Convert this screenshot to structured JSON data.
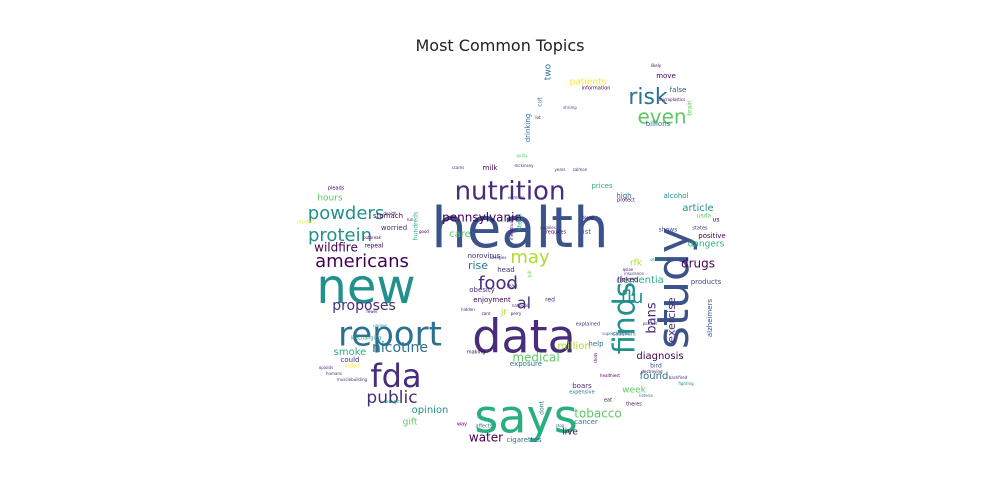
{
  "chart_data": {
    "type": "wordcloud",
    "title": "Most Common Topics",
    "palette": [
      "#440154",
      "#472d7b",
      "#3b528b",
      "#2c728e",
      "#21918c",
      "#28ae80",
      "#5ec962",
      "#addc30",
      "#fde725"
    ],
    "words": [
      {
        "text": "health",
        "weight": 100,
        "color": "#3b528b"
      },
      {
        "text": "says",
        "weight": 86,
        "color": "#28ae80"
      },
      {
        "text": "data",
        "weight": 84,
        "color": "#472d7b"
      },
      {
        "text": "study",
        "weight": 80,
        "color": "#3b528b"
      },
      {
        "text": "new",
        "weight": 78,
        "color": "#21918c"
      },
      {
        "text": "report",
        "weight": 62,
        "color": "#2c728e"
      },
      {
        "text": "fda",
        "weight": 58,
        "color": "#472d7b"
      },
      {
        "text": "finds",
        "weight": 52,
        "color": "#21918c"
      },
      {
        "text": "nutrition",
        "weight": 42,
        "color": "#472d7b"
      },
      {
        "text": "risk",
        "weight": 36,
        "color": "#2c728e"
      },
      {
        "text": "americans",
        "weight": 32,
        "color": "#440154"
      },
      {
        "text": "even",
        "weight": 30,
        "color": "#5ec962"
      },
      {
        "text": "protein",
        "weight": 30,
        "color": "#21918c"
      },
      {
        "text": "powders",
        "weight": 30,
        "color": "#21918c"
      },
      {
        "text": "food",
        "weight": 28,
        "color": "#472d7b"
      },
      {
        "text": "may",
        "weight": 28,
        "color": "#addc30"
      },
      {
        "text": "flu",
        "weight": 26,
        "color": "#21918c"
      },
      {
        "text": "public",
        "weight": 26,
        "color": "#472d7b"
      },
      {
        "text": "al",
        "weight": 24,
        "color": "#472d7b"
      },
      {
        "text": "proposes",
        "weight": 22,
        "color": "#472d7b"
      },
      {
        "text": "nicotine",
        "weight": 22,
        "color": "#2c728e"
      },
      {
        "text": "pennsylvania",
        "weight": 20,
        "color": "#440154"
      },
      {
        "text": "wildfire",
        "weight": 20,
        "color": "#440154"
      },
      {
        "text": "medical",
        "weight": 20,
        "color": "#5ec962"
      },
      {
        "text": "tobacco",
        "weight": 20,
        "color": "#5ec962"
      },
      {
        "text": "bans",
        "weight": 20,
        "color": "#472d7b"
      },
      {
        "text": "exercise",
        "weight": 18,
        "color": "#472d7b"
      },
      {
        "text": "water",
        "weight": 18,
        "color": "#440154"
      },
      {
        "text": "drugs",
        "weight": 18,
        "color": "#440154"
      },
      {
        "text": "rise",
        "weight": 18,
        "color": "#2c728e"
      },
      {
        "text": "dementia",
        "weight": 16,
        "color": "#28ae80"
      },
      {
        "text": "million",
        "weight": 16,
        "color": "#addc30"
      },
      {
        "text": "diagnosis",
        "weight": 16,
        "color": "#440154"
      },
      {
        "text": "found",
        "weight": 16,
        "color": "#2c728e"
      },
      {
        "text": "opinion",
        "weight": 16,
        "color": "#21918c"
      },
      {
        "text": "smoke",
        "weight": 16,
        "color": "#28ae80"
      },
      {
        "text": "article",
        "weight": 15,
        "color": "#21918c"
      },
      {
        "text": "dangers",
        "weight": 15,
        "color": "#28ae80"
      },
      {
        "text": "care",
        "weight": 15,
        "color": "#5ec962"
      },
      {
        "text": "patients",
        "weight": 14,
        "color": "#fde725"
      },
      {
        "text": "two",
        "weight": 14,
        "color": "#2c728e"
      },
      {
        "text": "gift",
        "weight": 14,
        "color": "#5ec962"
      },
      {
        "text": "live",
        "weight": 14,
        "color": "#440154"
      },
      {
        "text": "week",
        "weight": 14,
        "color": "#5ec962"
      },
      {
        "text": "rfk",
        "weight": 14,
        "color": "#addc30"
      },
      {
        "text": "hours",
        "weight": 12,
        "color": "#5ec962"
      },
      {
        "text": "jr",
        "weight": 12,
        "color": "#addc30"
      },
      {
        "text": "cigarettes",
        "weight": 11,
        "color": "#2c728e"
      },
      {
        "text": "drinking",
        "weight": 11,
        "color": "#2c728e"
      },
      {
        "text": "alzheimers",
        "weight": 11,
        "color": "#3b528b"
      },
      {
        "text": "obesity",
        "weight": 11,
        "color": "#472d7b"
      },
      {
        "text": "norovirus",
        "weight": 11,
        "color": "#472d7b"
      },
      {
        "text": "stomach",
        "weight": 10,
        "color": "#440154"
      },
      {
        "text": "enjoyment",
        "weight": 10,
        "color": "#440154"
      },
      {
        "text": "exposure",
        "weight": 10,
        "color": "#2c728e"
      },
      {
        "text": "billions",
        "weight": 10,
        "color": "#2c728e"
      },
      {
        "text": "list",
        "weight": 10,
        "color": "#2c728e"
      },
      {
        "text": "false",
        "weight": 10,
        "color": "#3b528b"
      },
      {
        "text": "move",
        "weight": 10,
        "color": "#440154"
      },
      {
        "text": "prices",
        "weight": 10,
        "color": "#28ae80"
      },
      {
        "text": "high",
        "weight": 10,
        "color": "#2c728e"
      },
      {
        "text": "alcohol",
        "weight": 10,
        "color": "#21918c"
      },
      {
        "text": "linked",
        "weight": 10,
        "color": "#440154"
      },
      {
        "text": "worried",
        "weight": 10,
        "color": "#472d7b"
      },
      {
        "text": "products",
        "weight": 10,
        "color": "#3b528b"
      },
      {
        "text": "positive",
        "weight": 10,
        "color": "#440154"
      },
      {
        "text": "could",
        "weight": 10,
        "color": "#472d7b"
      },
      {
        "text": "cancer",
        "weight": 10,
        "color": "#2c728e"
      },
      {
        "text": "boars",
        "weight": 10,
        "color": "#472d7b"
      },
      {
        "text": "help",
        "weight": 10,
        "color": "#2c728e"
      },
      {
        "text": "milk",
        "weight": 10,
        "color": "#440154"
      },
      {
        "text": "head",
        "weight": 10,
        "color": "#472d7b"
      },
      {
        "text": "shows",
        "weight": 9,
        "color": "#3b528b"
      },
      {
        "text": "repeal",
        "weight": 9,
        "color": "#440154"
      },
      {
        "text": "cut",
        "weight": 9,
        "color": "#2c728e"
      },
      {
        "text": "dont",
        "weight": 9,
        "color": "#2c728e"
      },
      {
        "text": "brain",
        "weight": 9,
        "color": "#5ec962"
      },
      {
        "text": "information",
        "weight": 8,
        "color": "#440154"
      },
      {
        "text": "lifechanging",
        "weight": 8,
        "color": "#21918c"
      },
      {
        "text": "models",
        "weight": 8,
        "color": "#fde725"
      },
      {
        "text": "biden",
        "weight": 8,
        "color": "#fde725"
      },
      {
        "text": "pleads",
        "weight": 8,
        "color": "#440154"
      },
      {
        "text": "hundreds",
        "weight": 8,
        "color": "#28ae80"
      },
      {
        "text": "steep",
        "weight": 8,
        "color": "#28ae80"
      },
      {
        "text": "red",
        "weight": 8,
        "color": "#472d7b"
      },
      {
        "text": "bird",
        "weight": 8,
        "color": "#3b528b"
      },
      {
        "text": "usda",
        "weight": 8,
        "color": "#5ec962"
      },
      {
        "text": "us",
        "weight": 8,
        "color": "#440154"
      },
      {
        "text": "protect",
        "weight": 7,
        "color": "#440154"
      },
      {
        "text": "cadmium",
        "weight": 7,
        "color": "#2c728e"
      },
      {
        "text": "explained",
        "weight": 7,
        "color": "#472d7b"
      },
      {
        "text": "requires",
        "weight": 7,
        "color": "#440154"
      },
      {
        "text": "making",
        "weight": 7,
        "color": "#440154"
      },
      {
        "text": "expensive",
        "weight": 7,
        "color": "#2c728e"
      },
      {
        "text": "affects",
        "weight": 7,
        "color": "#2c728e"
      },
      {
        "text": "way",
        "weight": 7,
        "color": "#440154"
      },
      {
        "text": "theres",
        "weight": 7,
        "color": "#440154"
      },
      {
        "text": "eat",
        "weight": 7,
        "color": "#440154"
      },
      {
        "text": "lead",
        "weight": 7,
        "color": "#472d7b"
      },
      {
        "text": "bill",
        "weight": 7,
        "color": "#5ec962"
      },
      {
        "text": "states",
        "weight": 7,
        "color": "#472d7b"
      },
      {
        "text": "years",
        "weight": 6,
        "color": "#472d7b"
      },
      {
        "text": "scams",
        "weight": 6,
        "color": "#472d7b"
      },
      {
        "text": "salmon",
        "weight": 6,
        "color": "#472d7b"
      },
      {
        "text": "angeles",
        "weight": 6,
        "color": "#472d7b"
      },
      {
        "text": "womens",
        "weight": 6,
        "color": "#472d7b"
      },
      {
        "text": "lot",
        "weight": 6,
        "color": "#440154"
      },
      {
        "text": "likely",
        "weight": 6,
        "color": "#440154"
      },
      {
        "text": "shrimp",
        "weight": 6,
        "color": "#3b528b"
      },
      {
        "text": "hidden",
        "weight": 6,
        "color": "#472d7b"
      },
      {
        "text": "run",
        "weight": 6,
        "color": "#440154"
      },
      {
        "text": "good",
        "weight": 6,
        "color": "#440154"
      },
      {
        "text": "outbreak",
        "weight": 6,
        "color": "#440154"
      },
      {
        "text": "dearth",
        "weight": 6,
        "color": "#440154"
      },
      {
        "text": "unique",
        "weight": 6,
        "color": "#21918c"
      },
      {
        "text": "fewer",
        "weight": 6,
        "color": "#440154"
      },
      {
        "text": "cant",
        "weight": 6,
        "color": "#440154"
      },
      {
        "text": "perry",
        "weight": 6,
        "color": "#440154"
      },
      {
        "text": "opioids",
        "weight": 6,
        "color": "#472d7b"
      },
      {
        "text": "humans",
        "weight": 6,
        "color": "#472d7b"
      },
      {
        "text": "musclebuilding",
        "weight": 6,
        "color": "#472d7b"
      },
      {
        "text": "thought",
        "weight": 6,
        "color": "#21918c"
      },
      {
        "text": "stop",
        "weight": 6,
        "color": "#2c728e"
      },
      {
        "text": "listeria",
        "weight": 6,
        "color": "#2c728e"
      },
      {
        "text": "destroying",
        "weight": 6,
        "color": "#440154"
      },
      {
        "text": "backfired",
        "weight": 6,
        "color": "#472d7b"
      },
      {
        "text": "fighting",
        "weight": 6,
        "color": "#21918c"
      },
      {
        "text": "shots",
        "weight": 6,
        "color": "#440154"
      },
      {
        "text": "healthiest",
        "weight": 6,
        "color": "#440154"
      },
      {
        "text": "partner",
        "weight": 6,
        "color": "#472d7b"
      },
      {
        "text": "supercharged",
        "weight": 6,
        "color": "#2c728e"
      },
      {
        "text": "asian",
        "weight": 6,
        "color": "#440154"
      },
      {
        "text": "seafood",
        "weight": 6,
        "color": "#21918c"
      },
      {
        "text": "insurance",
        "weight": 6,
        "color": "#472d7b"
      },
      {
        "text": "mckinsey",
        "weight": 6,
        "color": "#472d7b"
      },
      {
        "text": "guilty",
        "weight": 6,
        "color": "#5ec962"
      },
      {
        "text": "menstrual",
        "weight": 6,
        "color": "#440154"
      },
      {
        "text": "allergies",
        "weight": 6,
        "color": "#472d7b"
      },
      {
        "text": "national",
        "weight": 6,
        "color": "#472d7b"
      },
      {
        "text": "blood",
        "weight": 6,
        "color": "#440154"
      },
      {
        "text": "microplastics",
        "weight": 5,
        "color": "#440154"
      }
    ]
  }
}
